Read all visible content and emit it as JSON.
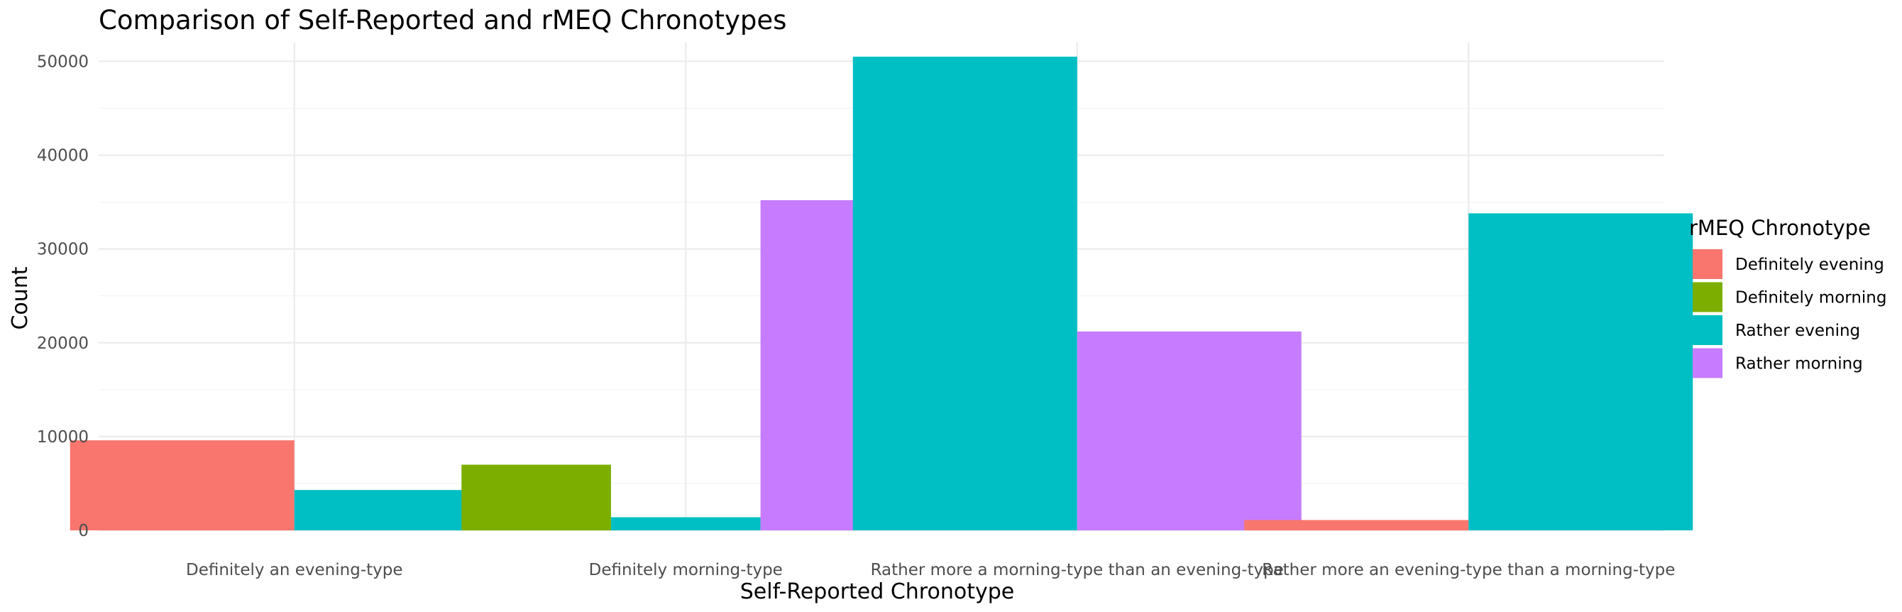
{
  "chart_data": {
    "type": "bar",
    "title": "Comparison of Self-Reported and rMEQ Chronotypes",
    "xlabel": "Self-Reported Chronotype",
    "ylabel": "Count",
    "ylim": [
      0,
      52000
    ],
    "yticks": [
      0,
      10000,
      20000,
      30000,
      40000,
      50000
    ],
    "yticklabels": [
      "0",
      "10000",
      "20000",
      "30000",
      "40000",
      "50000"
    ],
    "grid": true,
    "legend": {
      "title": "rMEQ Chronotype",
      "position": "right"
    },
    "categories": [
      "Definitely an evening-type",
      "Definitely morning-type",
      "Rather more a morning-type than an evening-type",
      "Rather more an evening-type than a morning-type"
    ],
    "series": [
      {
        "name": "Definitely evening",
        "color": "#F8766D",
        "values": [
          9600,
          null,
          null,
          1100
        ]
      },
      {
        "name": "Definitely morning",
        "color": "#7CAE00",
        "values": [
          null,
          7000,
          null,
          null
        ]
      },
      {
        "name": "Rather evening",
        "color": "#00BFC4",
        "values": [
          4300,
          1400,
          50500,
          33800
        ]
      },
      {
        "name": "Rather morning",
        "color": "#C77CFF",
        "values": [
          null,
          35200,
          21200,
          null
        ]
      }
    ]
  }
}
